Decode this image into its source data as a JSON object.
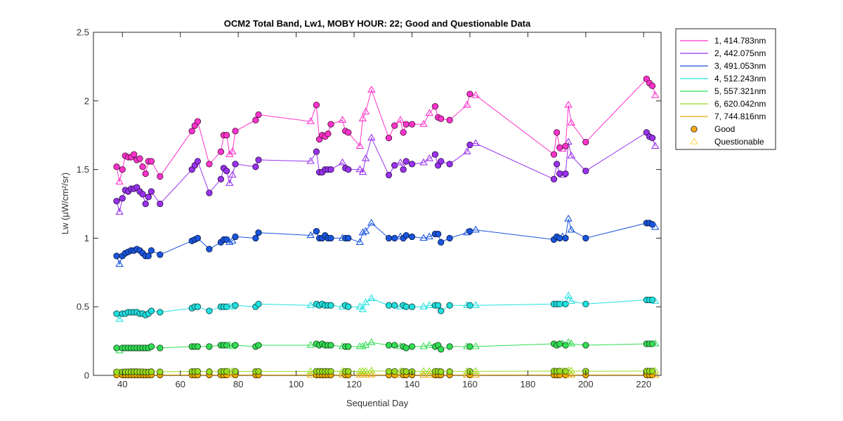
{
  "chart_data": {
    "type": "line",
    "title": "OCM2 Total Band,  Lw1, MOBY HOUR: 22;  Good and Questionable Data",
    "xlabel": "Sequential Day",
    "ylabel": "Lw (μW/cm²/sr)",
    "xlim": [
      30,
      226
    ],
    "ylim": [
      0,
      2.5
    ],
    "xticks": [
      40,
      60,
      80,
      100,
      120,
      140,
      160,
      180,
      200,
      220
    ],
    "yticks": [
      0,
      0.5,
      1,
      1.5,
      2,
      2.5
    ],
    "ytick_labels": [
      "0",
      "0.5",
      "1",
      "1.5",
      "2",
      "2.5"
    ],
    "grid": false,
    "legend_position": "outside-right",
    "x": [
      38,
      39,
      40,
      41,
      42,
      43,
      44,
      45,
      46,
      47,
      48,
      49,
      50,
      53,
      64,
      65,
      66,
      70,
      74,
      75,
      76,
      77,
      78,
      79,
      86,
      87,
      105,
      107,
      108,
      109,
      110,
      111,
      112,
      116,
      117,
      118,
      122,
      123,
      124,
      126,
      132,
      134,
      136,
      137,
      138,
      140,
      144,
      146,
      148,
      149,
      150,
      153,
      159,
      160,
      162,
      189,
      190,
      191,
      192,
      193,
      194,
      195,
      200,
      221,
      222,
      223,
      224
    ],
    "status": [
      "G",
      "Q",
      "G",
      "G",
      "G",
      "G",
      "G",
      "G",
      "G",
      "G",
      "G",
      "G",
      "G",
      "G",
      "G",
      "G",
      "G",
      "G",
      "G",
      "G",
      "G",
      "Q",
      "Q",
      "G",
      "G",
      "G",
      "Q",
      "G",
      "G",
      "G",
      "G",
      "G",
      "G",
      "Q",
      "G",
      "G",
      "Q",
      "Q",
      "Q",
      "Q",
      "G",
      "G",
      "Q",
      "G",
      "G",
      "G",
      "Q",
      "Q",
      "G",
      "G",
      "G",
      "G",
      "Q",
      "G",
      "Q",
      "G",
      "G",
      "G",
      "Q",
      "G",
      "Q",
      "Q",
      "G",
      "G",
      "G",
      "G",
      "Q"
    ],
    "series": [
      {
        "name": "1, 414.783nm",
        "color": "#ff33cc",
        "values": [
          1.52,
          1.41,
          1.5,
          1.6,
          1.59,
          1.59,
          1.61,
          1.57,
          1.58,
          1.52,
          1.47,
          1.56,
          1.56,
          1.45,
          1.78,
          1.82,
          1.85,
          1.54,
          1.63,
          1.75,
          1.75,
          1.61,
          1.63,
          1.78,
          1.86,
          1.9,
          1.85,
          1.97,
          1.72,
          1.75,
          1.74,
          1.76,
          1.83,
          1.86,
          1.78,
          1.77,
          1.67,
          1.87,
          1.92,
          2.08,
          1.73,
          1.82,
          1.86,
          1.77,
          1.83,
          1.83,
          1.83,
          1.91,
          1.96,
          1.88,
          1.87,
          1.86,
          1.97,
          2.05,
          2.04,
          1.61,
          1.77,
          1.66,
          1.65,
          1.67,
          1.97,
          1.84,
          1.7,
          2.16,
          2.13,
          2.11,
          2.04
        ]
      },
      {
        "name": "2, 442.075nm",
        "color": "#9933ee",
        "values": [
          1.27,
          1.19,
          1.29,
          1.35,
          1.34,
          1.36,
          1.36,
          1.37,
          1.34,
          1.32,
          1.25,
          1.3,
          1.34,
          1.25,
          1.5,
          1.53,
          1.56,
          1.33,
          1.43,
          1.51,
          1.49,
          1.4,
          1.46,
          1.54,
          1.52,
          1.57,
          1.56,
          1.63,
          1.48,
          1.48,
          1.5,
          1.5,
          1.5,
          1.55,
          1.51,
          1.5,
          1.5,
          1.48,
          1.58,
          1.73,
          1.46,
          1.53,
          1.55,
          1.5,
          1.56,
          1.54,
          1.55,
          1.58,
          1.61,
          1.53,
          1.56,
          1.54,
          1.63,
          1.68,
          1.69,
          1.43,
          1.54,
          1.47,
          1.46,
          1.47,
          1.7,
          1.6,
          1.49,
          1.77,
          1.74,
          1.73,
          1.67
        ]
      },
      {
        "name": "3, 491.053nm",
        "color": "#1a55dd",
        "values": [
          0.87,
          0.81,
          0.87,
          0.89,
          0.9,
          0.91,
          0.91,
          0.92,
          0.91,
          0.89,
          0.87,
          0.87,
          0.91,
          0.88,
          0.98,
          0.99,
          1.0,
          0.92,
          0.97,
          0.99,
          0.99,
          0.97,
          0.98,
          1.01,
          1.0,
          1.04,
          1.02,
          1.05,
          1.0,
          1.0,
          1.02,
          1.0,
          1.0,
          1.0,
          1.0,
          1.0,
          0.97,
          1.04,
          1.05,
          1.11,
          1.0,
          1.0,
          1.01,
          1.0,
          1.02,
          1.01,
          1.0,
          1.01,
          1.03,
          1.03,
          0.97,
          1.0,
          1.04,
          1.05,
          1.06,
          0.99,
          1.01,
          1.0,
          1.01,
          1.0,
          1.14,
          1.06,
          1.0,
          1.11,
          1.11,
          1.1,
          1.08
        ]
      },
      {
        "name": "4, 512.243nm",
        "color": "#22e0e0",
        "values": [
          0.45,
          0.41,
          0.45,
          0.45,
          0.46,
          0.46,
          0.46,
          0.46,
          0.45,
          0.45,
          0.44,
          0.45,
          0.47,
          0.46,
          0.49,
          0.5,
          0.5,
          0.47,
          0.5,
          0.5,
          0.5,
          0.5,
          0.5,
          0.51,
          0.5,
          0.52,
          0.51,
          0.52,
          0.51,
          0.52,
          0.51,
          0.51,
          0.51,
          0.5,
          0.51,
          0.5,
          0.5,
          0.48,
          0.53,
          0.56,
          0.51,
          0.51,
          0.5,
          0.51,
          0.5,
          0.5,
          0.5,
          0.51,
          0.51,
          0.51,
          0.47,
          0.51,
          0.51,
          0.51,
          0.51,
          0.52,
          0.52,
          0.52,
          0.52,
          0.52,
          0.58,
          0.54,
          0.52,
          0.55,
          0.55,
          0.55,
          0.54
        ]
      },
      {
        "name": "5, 557.321nm",
        "color": "#33dd55",
        "values": [
          0.2,
          0.18,
          0.2,
          0.2,
          0.2,
          0.2,
          0.2,
          0.2,
          0.2,
          0.2,
          0.2,
          0.2,
          0.21,
          0.2,
          0.21,
          0.21,
          0.21,
          0.21,
          0.22,
          0.22,
          0.22,
          0.22,
          0.21,
          0.22,
          0.21,
          0.22,
          0.22,
          0.23,
          0.22,
          0.23,
          0.22,
          0.22,
          0.22,
          0.21,
          0.21,
          0.21,
          0.21,
          0.21,
          0.22,
          0.24,
          0.22,
          0.22,
          0.21,
          0.21,
          0.2,
          0.21,
          0.21,
          0.22,
          0.21,
          0.22,
          0.19,
          0.21,
          0.21,
          0.21,
          0.21,
          0.23,
          0.22,
          0.23,
          0.23,
          0.22,
          0.24,
          0.23,
          0.22,
          0.23,
          0.23,
          0.23,
          0.23
        ]
      },
      {
        "name": "6, 620.042nm",
        "color": "#99dd22",
        "values": [
          0.025,
          0.022,
          0.025,
          0.026,
          0.026,
          0.027,
          0.027,
          0.027,
          0.026,
          0.026,
          0.025,
          0.025,
          0.027,
          0.026,
          0.028,
          0.028,
          0.029,
          0.027,
          0.028,
          0.029,
          0.029,
          0.029,
          0.028,
          0.029,
          0.028,
          0.029,
          0.028,
          0.03,
          0.029,
          0.029,
          0.029,
          0.029,
          0.029,
          0.03,
          0.029,
          0.029,
          0.028,
          0.028,
          0.03,
          0.033,
          0.029,
          0.029,
          0.03,
          0.029,
          0.028,
          0.028,
          0.029,
          0.029,
          0.029,
          0.029,
          0.027,
          0.028,
          0.029,
          0.029,
          0.029,
          0.031,
          0.03,
          0.031,
          0.031,
          0.03,
          0.034,
          0.032,
          0.03,
          0.031,
          0.031,
          0.031,
          0.031
        ]
      },
      {
        "name": "7, 744.816nm",
        "color": "#eeaa00",
        "values": [
          0.003,
          0.003,
          0.003,
          0.003,
          0.003,
          0.003,
          0.003,
          0.003,
          0.003,
          0.003,
          0.003,
          0.003,
          0.003,
          0.003,
          0.003,
          0.003,
          0.003,
          0.003,
          0.003,
          0.003,
          0.003,
          0.003,
          0.003,
          0.003,
          0.003,
          0.003,
          0.003,
          0.003,
          0.003,
          0.003,
          0.003,
          0.003,
          0.003,
          0.003,
          0.003,
          0.003,
          0.003,
          0.003,
          0.003,
          0.004,
          0.003,
          0.003,
          0.003,
          0.003,
          0.003,
          0.003,
          0.003,
          0.003,
          0.003,
          0.003,
          0.003,
          0.003,
          0.003,
          0.003,
          0.003,
          0.003,
          0.003,
          0.003,
          0.003,
          0.003,
          0.004,
          0.003,
          0.003,
          0.003,
          0.003,
          0.003,
          0.003
        ]
      }
    ],
    "marker_legend": [
      {
        "name": "Good",
        "marker": "circle",
        "color": "#ffaa11"
      },
      {
        "name": "Questionable",
        "marker": "triangle",
        "color": "#ffdd55"
      }
    ]
  }
}
